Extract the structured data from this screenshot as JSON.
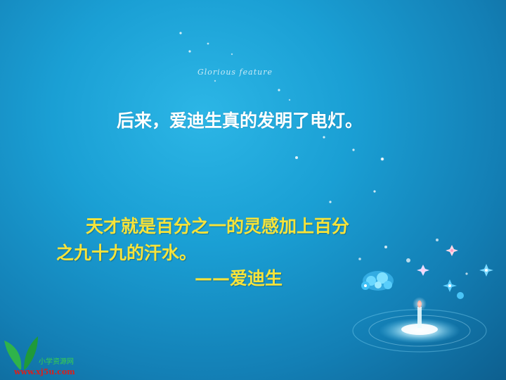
{
  "slide": {
    "decor_caption": "Glorious feature",
    "sentence": "后来，爱迪生真的发明了电灯。",
    "quote_line1": "天才就是百分之一的灵感加上百分",
    "quote_line2": "之九十九的汗水。",
    "quote_attribution": "——爱迪生"
  },
  "logo": {
    "chinese_name": "小学资源网",
    "url": "www.xj5u.com"
  },
  "colors": {
    "background": "#1a9fd4",
    "sentence_text": "#ffffff",
    "quote_text": "#f6e33a",
    "logo_url": "#d8201e",
    "logo_leaf": "#2fb34a"
  }
}
